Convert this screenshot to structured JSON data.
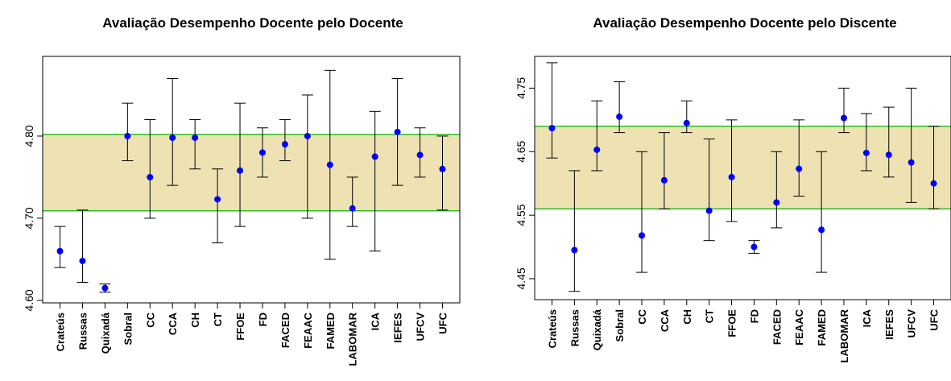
{
  "chart_data": [
    {
      "type": "scatter",
      "title": "Avaliação Desempenho Docente pelo Docente",
      "categories": [
        "Crateús",
        "Russas",
        "Quixadá",
        "Sobral",
        "CC",
        "CCA",
        "CH",
        "CT",
        "FFOE",
        "FD",
        "FACED",
        "FEAAC",
        "FAMED",
        "LABOMAR",
        "ICA",
        "IEFES",
        "UFCV",
        "UFC"
      ],
      "ylim": [
        4.597,
        4.897
      ],
      "yticks": [
        {
          "v": 4.6,
          "t": "4.60"
        },
        {
          "v": 4.7,
          "t": "4.70"
        },
        {
          "v": 4.8,
          "t": "4.80"
        }
      ],
      "band": [
        4.709,
        4.802
      ],
      "series": [
        {
          "values": [
            4.66,
            4.648,
            4.615,
            4.8,
            4.75,
            4.798,
            4.798,
            4.723,
            4.758,
            4.78,
            4.79,
            4.8,
            4.765,
            4.712,
            4.775,
            4.805,
            4.777,
            4.76
          ],
          "lower": [
            4.64,
            4.622,
            4.61,
            4.77,
            4.7,
            4.74,
            4.76,
            4.67,
            4.69,
            4.75,
            4.77,
            4.7,
            4.65,
            4.69,
            4.66,
            4.74,
            4.75,
            4.71
          ],
          "upper": [
            4.69,
            4.71,
            4.62,
            4.84,
            4.82,
            4.87,
            4.82,
            4.76,
            4.84,
            4.81,
            4.82,
            4.85,
            4.88,
            4.75,
            4.83,
            4.87,
            4.81,
            4.8
          ]
        }
      ],
      "colors": {
        "point": "#0000ff",
        "band_fill": "#eee2b3",
        "band_line": "#00b400",
        "errorbar": "#000000"
      }
    },
    {
      "type": "scatter",
      "title": "Avaliação Desempenho Docente pelo Discente",
      "categories": [
        "Crateús",
        "Russas",
        "Quixadá",
        "Sobral",
        "CC",
        "CCA",
        "CH",
        "CT",
        "FFOE",
        "FD",
        "FACED",
        "FEAAC",
        "FAMED",
        "LABOMAR",
        "ICA",
        "IEFES",
        "UFCV",
        "UFC"
      ],
      "ylim": [
        4.417,
        4.8
      ],
      "yticks": [
        {
          "v": 4.45,
          "t": "4.45"
        },
        {
          "v": 4.55,
          "t": "4.55"
        },
        {
          "v": 4.65,
          "t": "4.65"
        },
        {
          "v": 4.75,
          "t": "4.75"
        }
      ],
      "band": [
        4.56,
        4.69
      ],
      "series": [
        {
          "values": [
            4.687,
            4.495,
            4.653,
            4.705,
            4.518,
            4.605,
            4.695,
            4.557,
            4.61,
            4.5,
            4.57,
            4.623,
            4.527,
            4.703,
            4.648,
            4.645,
            4.633,
            4.6
          ],
          "lower": [
            4.64,
            4.43,
            4.62,
            4.68,
            4.46,
            4.56,
            4.68,
            4.51,
            4.54,
            4.49,
            4.53,
            4.58,
            4.46,
            4.68,
            4.62,
            4.61,
            4.57,
            4.56
          ],
          "upper": [
            4.79,
            4.62,
            4.73,
            4.76,
            4.65,
            4.68,
            4.73,
            4.67,
            4.7,
            4.51,
            4.65,
            4.7,
            4.65,
            4.75,
            4.71,
            4.72,
            4.75,
            4.69
          ]
        }
      ],
      "colors": {
        "point": "#0000ff",
        "band_fill": "#eee2b3",
        "band_line": "#00b400",
        "errorbar": "#000000"
      }
    }
  ]
}
